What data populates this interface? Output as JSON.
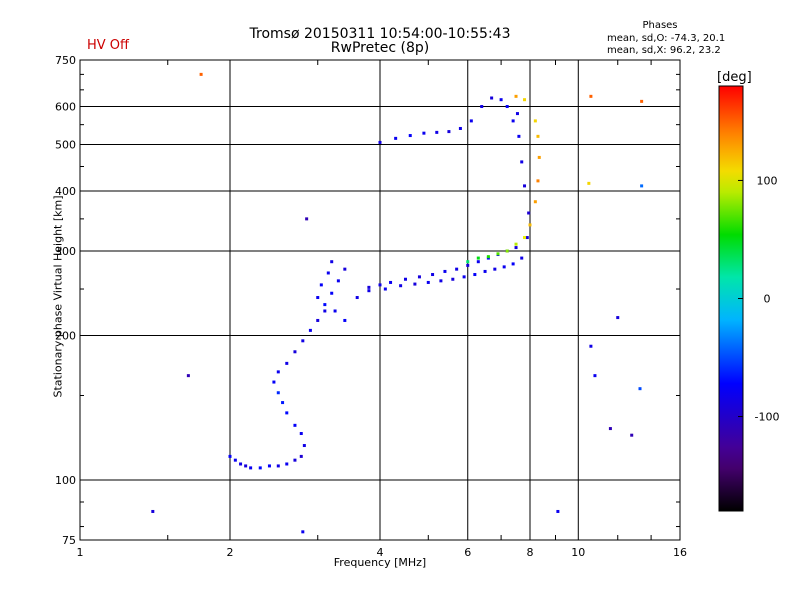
{
  "header": {
    "title_line1": "Tromsø 20150311 10:54:00-10:55:43",
    "title_line2": "RwPretec (8p)",
    "status": "HV Off",
    "status_color": "#cc0000",
    "stats_heading": "Phases",
    "stats_line1": "mean, sd,O: -74.3, 20.1",
    "stats_line2": "mean, sd,X: 96.2, 23.2"
  },
  "chart_data": {
    "type": "scatter",
    "title": "Tromsø 20150311 10:54:00-10:55:43",
    "subtitle": "RwPretec (8p)",
    "xlabel": "Frequency [MHz]",
    "ylabel": "Stationary phase Virtual Height [km]",
    "xscale": "log",
    "yscale": "log",
    "xlim": [
      1,
      16
    ],
    "ylim": [
      75,
      750
    ],
    "x_ticks": [
      1,
      2,
      4,
      6,
      8,
      10,
      16
    ],
    "y_ticks": [
      75,
      100,
      200,
      300,
      400,
      500,
      600,
      750
    ],
    "grid": true,
    "colorbar": {
      "label": "[deg]",
      "range": [
        -180,
        180
      ],
      "ticks": [
        100,
        0,
        -100
      ],
      "colormap": "rainbow"
    },
    "series": [
      {
        "name": "trace",
        "points": [
          [
            2.0,
            112,
            -75
          ],
          [
            2.05,
            110,
            -80
          ],
          [
            2.1,
            108,
            -85
          ],
          [
            2.15,
            107,
            -90
          ],
          [
            2.2,
            106,
            -80
          ],
          [
            2.3,
            106,
            -70
          ],
          [
            2.4,
            107,
            -75
          ],
          [
            2.5,
            107,
            -85
          ],
          [
            2.6,
            108,
            -80
          ],
          [
            2.7,
            110,
            -90
          ],
          [
            2.78,
            112,
            -95
          ],
          [
            2.82,
            118,
            -85
          ],
          [
            2.78,
            125,
            -80
          ],
          [
            2.7,
            130,
            -75
          ],
          [
            2.6,
            138,
            -70
          ],
          [
            2.55,
            145,
            -65
          ],
          [
            2.5,
            152,
            -60
          ],
          [
            2.45,
            160,
            -75
          ],
          [
            2.5,
            168,
            -80
          ],
          [
            2.6,
            175,
            -85
          ],
          [
            2.7,
            185,
            -90
          ],
          [
            2.8,
            195,
            -85
          ],
          [
            2.9,
            205,
            -80
          ],
          [
            3.0,
            215,
            -90
          ],
          [
            3.1,
            225,
            -85
          ],
          [
            3.0,
            240,
            -80
          ],
          [
            3.05,
            255,
            -75
          ],
          [
            3.15,
            270,
            -80
          ],
          [
            3.2,
            285,
            -85
          ],
          [
            3.4,
            275,
            -90
          ],
          [
            3.3,
            260,
            -80
          ],
          [
            3.2,
            245,
            -75
          ],
          [
            3.1,
            232,
            -70
          ],
          [
            3.25,
            225,
            -80
          ],
          [
            3.4,
            215,
            -75
          ],
          [
            3.6,
            240,
            -85
          ],
          [
            3.8,
            252,
            -90
          ],
          [
            4.0,
            255,
            -85
          ],
          [
            4.2,
            258,
            -80
          ],
          [
            4.5,
            262,
            -85
          ],
          [
            4.8,
            265,
            -90
          ],
          [
            5.1,
            268,
            -85
          ],
          [
            5.4,
            272,
            -80
          ],
          [
            5.7,
            275,
            -85
          ],
          [
            6.0,
            280,
            -90
          ],
          [
            6.3,
            285,
            -80
          ],
          [
            6.6,
            290,
            -70
          ],
          [
            6.9,
            295,
            -75
          ],
          [
            7.2,
            300,
            -80
          ],
          [
            7.5,
            305,
            -90
          ],
          [
            3.8,
            248,
            -85
          ],
          [
            4.1,
            250,
            -80
          ],
          [
            4.4,
            254,
            -85
          ],
          [
            4.7,
            256,
            -90
          ],
          [
            5.0,
            258,
            -80
          ],
          [
            5.3,
            260,
            -85
          ],
          [
            5.6,
            262,
            -90
          ],
          [
            5.9,
            265,
            -80
          ],
          [
            6.2,
            268,
            -75
          ],
          [
            6.5,
            272,
            -80
          ],
          [
            6.8,
            275,
            -85
          ],
          [
            7.1,
            278,
            -80
          ],
          [
            7.4,
            282,
            -75
          ],
          [
            7.7,
            290,
            -85
          ],
          [
            7.9,
            320,
            -90
          ],
          [
            7.95,
            360,
            -95
          ],
          [
            7.8,
            410,
            -90
          ],
          [
            7.7,
            460,
            -85
          ],
          [
            7.6,
            520,
            -80
          ],
          [
            7.55,
            580,
            -85
          ],
          [
            4.0,
            505,
            -85
          ],
          [
            4.3,
            515,
            -80
          ],
          [
            4.6,
            522,
            -75
          ],
          [
            4.9,
            528,
            -80
          ],
          [
            5.2,
            530,
            -85
          ],
          [
            5.5,
            532,
            -90
          ],
          [
            5.8,
            540,
            -85
          ],
          [
            6.1,
            560,
            -80
          ],
          [
            6.4,
            600,
            -85
          ],
          [
            6.7,
            625,
            -90
          ],
          [
            7.0,
            620,
            -80
          ],
          [
            7.2,
            600,
            -75
          ],
          [
            7.4,
            560,
            -80
          ],
          [
            6.0,
            285,
            30
          ],
          [
            6.3,
            290,
            50
          ],
          [
            6.6,
            292,
            60
          ],
          [
            6.9,
            296,
            70
          ],
          [
            7.2,
            300,
            80
          ],
          [
            7.5,
            310,
            90
          ],
          [
            7.8,
            320,
            100
          ],
          [
            8.0,
            340,
            120
          ],
          [
            8.2,
            380,
            130
          ],
          [
            8.3,
            420,
            140
          ],
          [
            8.35,
            470,
            130
          ],
          [
            8.3,
            520,
            120
          ],
          [
            8.2,
            560,
            110
          ],
          [
            7.8,
            620,
            110
          ],
          [
            7.5,
            630,
            130
          ],
          [
            10.6,
            190,
            -85
          ],
          [
            10.8,
            165,
            -80
          ],
          [
            12.0,
            218,
            -90
          ],
          [
            11.6,
            128,
            -110
          ],
          [
            12.8,
            124,
            -110
          ],
          [
            13.3,
            155,
            -50
          ],
          [
            13.4,
            410,
            -40
          ],
          [
            1.4,
            86,
            -90
          ],
          [
            1.65,
            165,
            -110
          ],
          [
            1.75,
            700,
            150
          ],
          [
            2.8,
            78,
            -80
          ],
          [
            2.85,
            350,
            -110
          ],
          [
            9.1,
            86,
            -80
          ],
          [
            10.5,
            415,
            110
          ],
          [
            13.4,
            615,
            150
          ],
          [
            10.6,
            630,
            150
          ]
        ]
      }
    ]
  }
}
